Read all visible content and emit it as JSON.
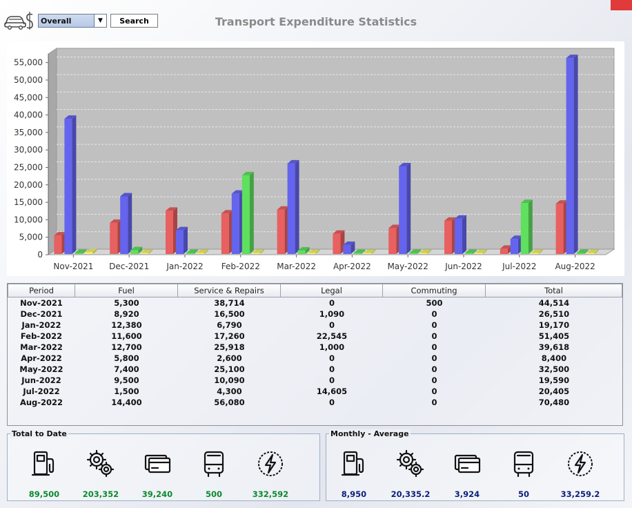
{
  "header": {
    "title": "Transport Expenditure Statistics",
    "period_select": "Overall",
    "search_label": "Search"
  },
  "chart_data": {
    "type": "bar",
    "categories": [
      "Nov-2021",
      "Dec-2021",
      "Jan-2022",
      "Feb-2022",
      "Mar-2022",
      "Apr-2022",
      "May-2022",
      "Jun-2022",
      "Jul-2022",
      "Aug-2022"
    ],
    "series": [
      {
        "values": [
          5300,
          8920,
          12380,
          11600,
          12700,
          5800,
          7400,
          9500,
          1500,
          14400
        ]
      },
      {
        "values": [
          38714,
          16500,
          6790,
          17260,
          25918,
          2600,
          25100,
          10090,
          4300,
          56080
        ]
      },
      {
        "values": [
          0,
          1090,
          0,
          22545,
          1000,
          0,
          0,
          0,
          14605,
          0
        ]
      },
      {
        "values": [
          500,
          0,
          0,
          0,
          0,
          0,
          0,
          0,
          0,
          0
        ]
      }
    ],
    "colors": [
      "#e86060",
      "#6464ee",
      "#5fe05f",
      "#f2f26a"
    ],
    "yticks": [
      "0",
      "5,000",
      "10,000",
      "15,000",
      "20,000",
      "25,000",
      "30,000",
      "35,000",
      "40,000",
      "45,000",
      "50,000",
      "55,000"
    ],
    "ylim": [
      0,
      57500
    ],
    "grid": true
  },
  "table": {
    "columns": [
      "Period",
      "Fuel",
      "Service & Repairs",
      "Legal",
      "Commuting",
      "Total"
    ],
    "rows": [
      [
        "Nov-2021",
        "5,300",
        "38,714",
        "0",
        "500",
        "44,514"
      ],
      [
        "Dec-2021",
        "8,920",
        "16,500",
        "1,090",
        "0",
        "26,510"
      ],
      [
        "Jan-2022",
        "12,380",
        "6,790",
        "0",
        "0",
        "19,170"
      ],
      [
        "Feb-2022",
        "11,600",
        "17,260",
        "22,545",
        "0",
        "51,405"
      ],
      [
        "Mar-2022",
        "12,700",
        "25,918",
        "1,000",
        "0",
        "39,618"
      ],
      [
        "Apr-2022",
        "5,800",
        "2,600",
        "0",
        "0",
        "8,400"
      ],
      [
        "May-2022",
        "7,400",
        "25,100",
        "0",
        "0",
        "32,500"
      ],
      [
        "Jun-2022",
        "9,500",
        "10,090",
        "0",
        "0",
        "19,590"
      ],
      [
        "Jul-2022",
        "1,500",
        "4,300",
        "14,605",
        "0",
        "20,405"
      ],
      [
        "Aug-2022",
        "14,400",
        "56,080",
        "0",
        "0",
        "70,480"
      ]
    ]
  },
  "totals": {
    "title": "Total to Date",
    "fuel": "89,500",
    "service": "203,352",
    "legal": "39,240",
    "commuting": "500",
    "total": "332,592"
  },
  "averages": {
    "title": "Monthly - Average",
    "fuel": "8,950",
    "service": "20,335.2",
    "legal": "3,924",
    "commuting": "50",
    "total": "33,259.2"
  },
  "icons": {
    "fuel": "fuel-pump-icon",
    "service": "gears-icon",
    "legal": "cards-icon",
    "commuting": "bus-icon",
    "total": "lightning-icon"
  }
}
